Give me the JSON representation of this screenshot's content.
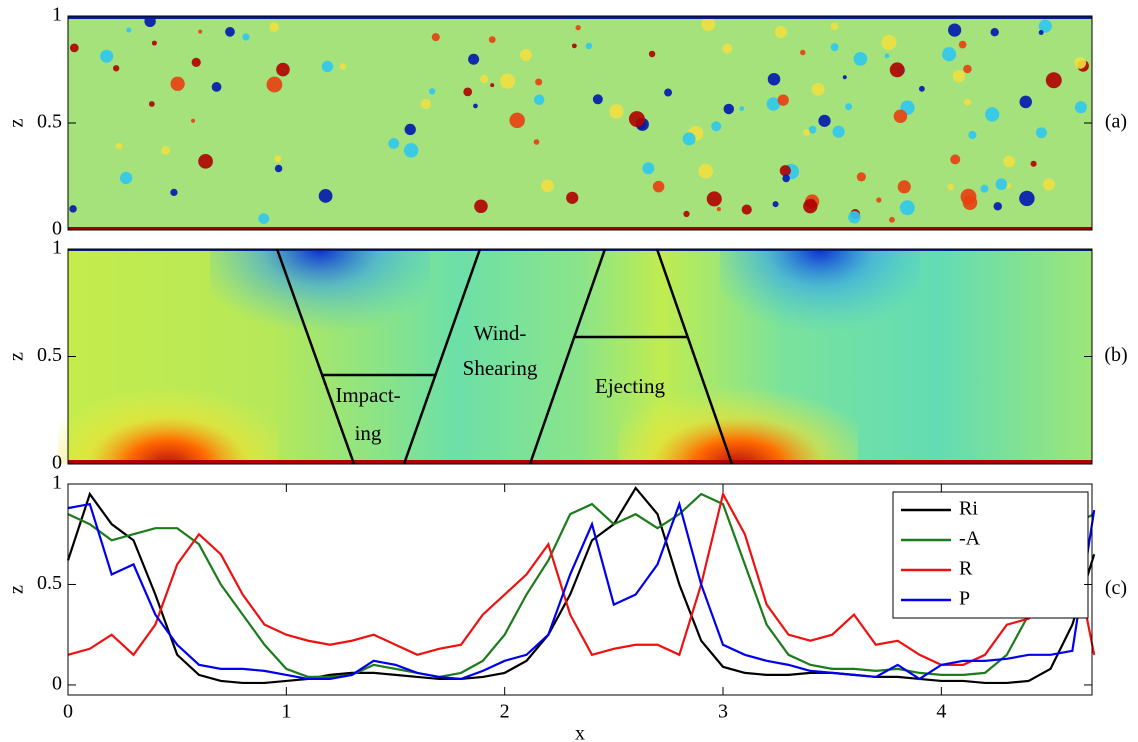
{
  "chart_data": [
    {
      "type": "image",
      "ylabel": "z",
      "panel_label": "(a)",
      "ylim": [
        0,
        1
      ],
      "yticks": [
        0,
        0.5,
        1
      ]
    },
    {
      "type": "image",
      "ylabel": "z",
      "panel_label": "(b)",
      "ylim": [
        0,
        1
      ],
      "yticks": [
        0,
        0.5,
        1
      ],
      "annotations": [
        "Impact-",
        "ing",
        "Wind-",
        "Shearing",
        "Ejecting"
      ]
    },
    {
      "type": "line",
      "ylabel": "z",
      "xlabel": "x",
      "panel_label": "(c)",
      "legend": "upper right",
      "xlim": [
        0,
        4.69
      ],
      "xticks": [
        0,
        1,
        2,
        3,
        4
      ],
      "ylim": [
        -0.05,
        1
      ],
      "yticks": [
        0,
        0.5,
        1
      ],
      "x": [
        0,
        0.1,
        0.2,
        0.3,
        0.4,
        0.5,
        0.6,
        0.7,
        0.8,
        0.9,
        1,
        1.1,
        1.2,
        1.3,
        1.4,
        1.5,
        1.6,
        1.7,
        1.8,
        1.9,
        2,
        2.1,
        2.2,
        2.3,
        2.4,
        2.5,
        2.6,
        2.7,
        2.8,
        2.9,
        3,
        3.1,
        3.2,
        3.3,
        3.4,
        3.5,
        3.6,
        3.7,
        3.8,
        3.9,
        4,
        4.1,
        4.2,
        4.3,
        4.4,
        4.5,
        4.6,
        4.7
      ],
      "series": [
        {
          "name": "Ri",
          "color": "#000000",
          "values": [
            0.62,
            0.95,
            0.8,
            0.72,
            0.45,
            0.15,
            0.05,
            0.02,
            0.01,
            0.01,
            0.02,
            0.03,
            0.05,
            0.06,
            0.06,
            0.05,
            0.04,
            0.03,
            0.03,
            0.04,
            0.06,
            0.12,
            0.25,
            0.45,
            0.72,
            0.8,
            0.98,
            0.85,
            0.5,
            0.22,
            0.09,
            0.06,
            0.05,
            0.05,
            0.06,
            0.06,
            0.05,
            0.04,
            0.04,
            0.03,
            0.02,
            0.02,
            0.01,
            0.01,
            0.02,
            0.08,
            0.3,
            0.65
          ]
        },
        {
          "name": "-A",
          "color": "#1c7c1c",
          "values": [
            0.85,
            0.8,
            0.72,
            0.75,
            0.78,
            0.78,
            0.7,
            0.5,
            0.35,
            0.2,
            0.08,
            0.04,
            0.04,
            0.05,
            0.1,
            0.08,
            0.06,
            0.04,
            0.06,
            0.12,
            0.25,
            0.45,
            0.62,
            0.85,
            0.9,
            0.8,
            0.85,
            0.78,
            0.85,
            0.95,
            0.9,
            0.6,
            0.3,
            0.15,
            0.1,
            0.08,
            0.08,
            0.07,
            0.08,
            0.06,
            0.05,
            0.05,
            0.06,
            0.15,
            0.35,
            0.6,
            0.8,
            0.85
          ]
        },
        {
          "name": "R",
          "color": "#ee1111",
          "values": [
            0.15,
            0.18,
            0.25,
            0.15,
            0.3,
            0.6,
            0.75,
            0.65,
            0.45,
            0.3,
            0.25,
            0.22,
            0.2,
            0.22,
            0.25,
            0.2,
            0.15,
            0.18,
            0.2,
            0.35,
            0.45,
            0.55,
            0.7,
            0.35,
            0.15,
            0.18,
            0.2,
            0.2,
            0.15,
            0.5,
            0.95,
            0.75,
            0.4,
            0.25,
            0.22,
            0.25,
            0.35,
            0.2,
            0.22,
            0.15,
            0.1,
            0.1,
            0.15,
            0.3,
            0.33,
            0.45,
            0.7,
            0.15
          ]
        },
        {
          "name": "P",
          "color": "#0000ee",
          "values": [
            0.88,
            0.9,
            0.55,
            0.6,
            0.35,
            0.2,
            0.1,
            0.08,
            0.08,
            0.07,
            0.05,
            0.03,
            0.03,
            0.05,
            0.12,
            0.1,
            0.06,
            0.04,
            0.03,
            0.07,
            0.12,
            0.15,
            0.25,
            0.55,
            0.8,
            0.4,
            0.45,
            0.6,
            0.9,
            0.5,
            0.2,
            0.15,
            0.12,
            0.1,
            0.07,
            0.06,
            0.05,
            0.04,
            0.1,
            0.03,
            0.1,
            0.12,
            0.12,
            0.13,
            0.15,
            0.15,
            0.17,
            0.87
          ]
        }
      ]
    }
  ]
}
